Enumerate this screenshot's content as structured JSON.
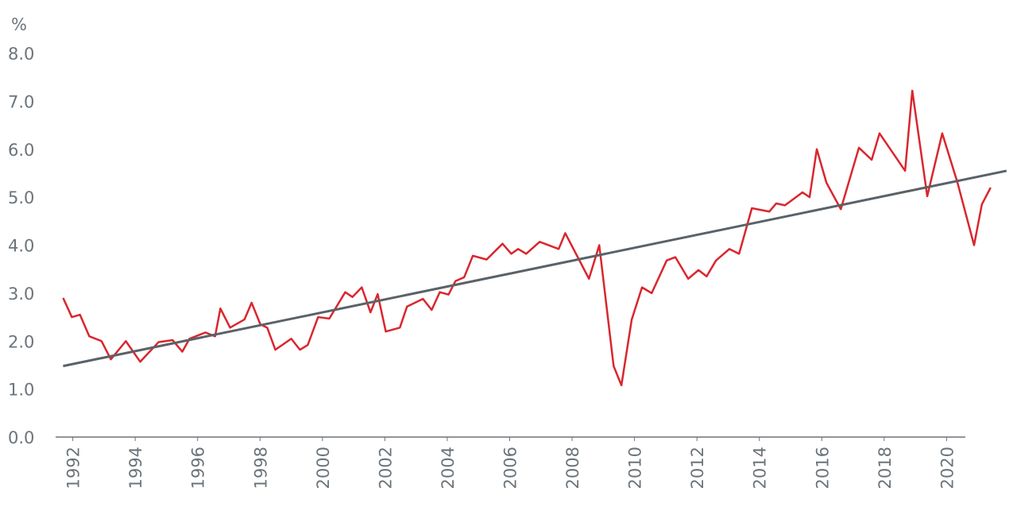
{
  "chart_data": {
    "type": "line",
    "y_label": "%",
    "xlim": [
      1991.45,
      2021.95
    ],
    "xticks": [
      1992,
      1994,
      1996,
      1998,
      2000,
      2002,
      2004,
      2006,
      2008,
      2010,
      2012,
      2014,
      2016,
      2018,
      2020
    ],
    "ylim": [
      0,
      8
    ],
    "yticks": [
      {
        "value": 0,
        "label": "0.0"
      },
      {
        "value": 1,
        "label": "1.0"
      },
      {
        "value": 2,
        "label": "2.0"
      },
      {
        "value": 3,
        "label": "3.0"
      },
      {
        "value": 4,
        "label": "4.0"
      },
      {
        "value": 5,
        "label": "5.0"
      },
      {
        "value": 6,
        "label": "6.0"
      },
      {
        "value": 7,
        "label": "7.0"
      },
      {
        "value": 8,
        "label": "8.0"
      }
    ],
    "grid": false,
    "series": [
      {
        "color": "#d9262e",
        "x": [
          1991.69,
          1991.97,
          1992.23,
          1992.53,
          1992.92,
          1993.22,
          1993.7,
          1994.16,
          1994.75,
          1995.2,
          1995.51,
          1995.74,
          1996.25,
          1996.56,
          1996.73,
          1997.04,
          1997.5,
          1997.73,
          1998.01,
          1998.23,
          1998.49,
          1999.0,
          1999.28,
          1999.53,
          1999.86,
          2000.22,
          2000.73,
          2000.96,
          2001.26,
          2001.54,
          2001.77,
          2002.03,
          2002.48,
          2002.71,
          2003.22,
          2003.5,
          2003.76,
          2004.04,
          2004.26,
          2004.54,
          2004.82,
          2005.26,
          2005.77,
          2006.05,
          2006.27,
          2006.53,
          2006.96,
          2007.57,
          2007.78,
          2008.54,
          2008.87,
          2009.33,
          2009.58,
          2009.91,
          2010.24,
          2010.55,
          2011.03,
          2011.31,
          2011.72,
          2012.05,
          2012.31,
          2012.61,
          2013.04,
          2013.35,
          2013.76,
          2014.32,
          2014.54,
          2014.82,
          2015.38,
          2015.61,
          2015.84,
          2016.15,
          2016.61,
          2017.19,
          2017.6,
          2017.85,
          2018.67,
          2018.9,
          2019.38,
          2019.86,
          2020.35,
          2020.88,
          2021.13,
          2021.41
        ],
        "values": [
          2.9,
          2.5,
          2.55,
          2.1,
          2.0,
          1.62,
          2.0,
          1.57,
          1.98,
          2.02,
          1.78,
          2.05,
          2.18,
          2.1,
          2.68,
          2.28,
          2.45,
          2.8,
          2.35,
          2.28,
          1.82,
          2.05,
          1.82,
          1.92,
          2.5,
          2.47,
          3.02,
          2.92,
          3.12,
          2.6,
          2.98,
          2.2,
          2.28,
          2.72,
          2.88,
          2.65,
          3.02,
          2.97,
          3.25,
          3.33,
          3.78,
          3.7,
          4.03,
          3.82,
          3.92,
          3.82,
          4.07,
          3.92,
          4.25,
          3.3,
          4.0,
          1.48,
          1.08,
          2.45,
          3.12,
          3.0,
          3.68,
          3.75,
          3.3,
          3.48,
          3.35,
          3.68,
          3.92,
          3.82,
          4.77,
          4.7,
          4.87,
          4.83,
          5.1,
          5.0,
          6.0,
          5.3,
          4.75,
          6.03,
          5.78,
          6.33,
          5.55,
          7.22,
          5.02,
          6.33,
          5.3,
          4.0,
          4.85,
          5.2
        ]
      },
      {
        "color": "#5a6268",
        "x": [
          1991.69,
          2021.92
        ],
        "values": [
          1.48,
          5.55
        ]
      }
    ]
  }
}
